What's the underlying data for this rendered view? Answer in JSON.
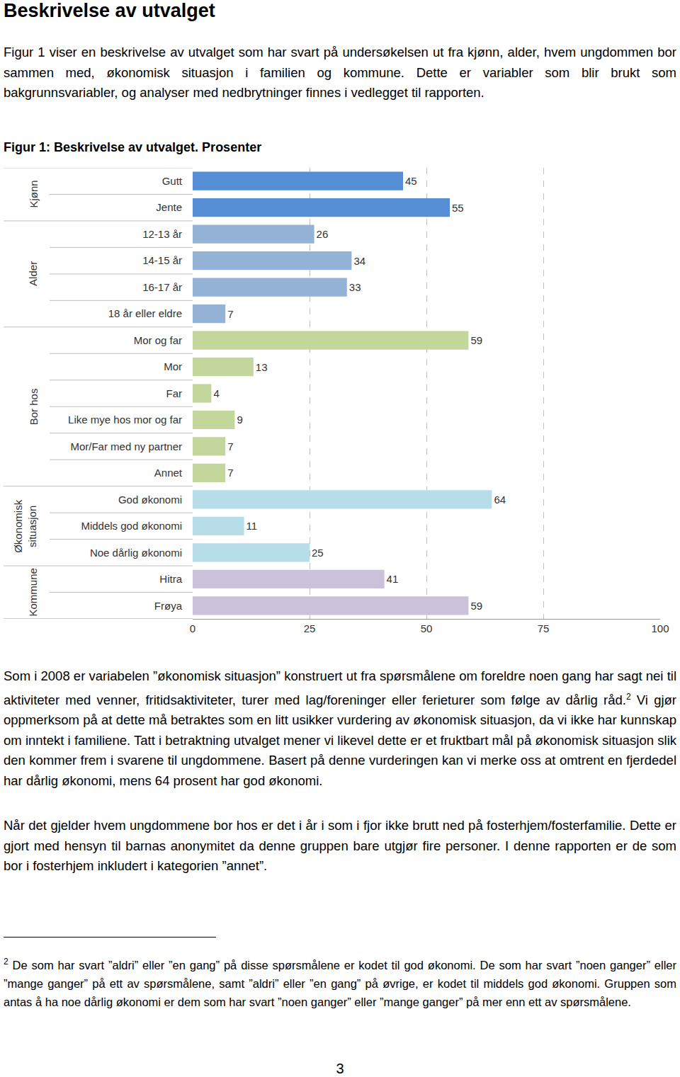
{
  "document": {
    "heading": "Beskrivelse av utvalget",
    "intro": "Figur 1 viser en beskrivelse av utvalget som har svart på undersøkelsen ut fra kjønn, alder, hvem ungdommen bor sammen med, økonomisk situasjon i familien og kommune. Dette er variabler som blir brukt som bakgrunnsvariabler, og analyser med nedbrytninger finnes i vedlegget til rapporten.",
    "paragraph2": {
      "before": "Som i 2008 er variabelen ”økonomisk situasjon” konstruert ut fra spørsmålene om foreldre noen gang har sagt nei til aktiviteter med venner, fritidsaktiviteter, turer med lag/foreninger eller ferieturer som følge av dårlig råd.",
      "footnote_ref": "2",
      "after": " Vi gjør oppmerksom på at dette må betraktes som en litt usikker vurdering av økonomisk situasjon, da vi ikke har kunnskap om inntekt i familiene. Tatt i betraktning utvalget mener vi likevel dette er et fruktbart mål på økonomisk situasjon slik den kommer frem i svarene til ungdommene. Basert på denne vurderingen kan vi merke oss at omtrent en fjerdedel har dårlig økonomi, mens 64 prosent har god økonomi."
    },
    "paragraph3": "Når det gjelder hvem ungdommene bor hos er det i år i som i fjor ikke brutt ned på fosterhjem/fosterfamilie. Dette er gjort med hensyn til barnas anonymitet da denne gruppen bare utgjør fire personer. I denne rapporten er de som bor i fosterhjem inkludert i kategorien ”annet”.",
    "footnote": {
      "number": "2",
      "text": " De som har svart ”aldri” eller ”en gang” på disse spørsmålene er kodet til god økonomi. De som har svart ”noen ganger” eller ”mange ganger” på ett av spørsmålene, samt ”aldri” eller ”en gang” på øvrige, er kodet til middels god økonomi. Gruppen som antas å ha noe dårlig økonomi er dem som har svart ”noen ganger” eller ”mange ganger” på mer enn ett av spørsmålene."
    },
    "page_number": "3"
  },
  "chart_data": {
    "type": "bar",
    "orientation": "horizontal",
    "title": "Figur 1: Beskrivelse av utvalget. Prosenter",
    "groups": [
      {
        "label": [
          "Kjønn"
        ],
        "color": "#558ed5",
        "categories": [
          "Gutt",
          "Jente"
        ],
        "values": [
          45,
          55
        ]
      },
      {
        "label": [
          "Alder"
        ],
        "color": "#95b3d7",
        "categories": [
          "12-13 år",
          "14-15 år",
          "16-17 år",
          "18 år eller eldre"
        ],
        "values": [
          26,
          34,
          33,
          7
        ]
      },
      {
        "label": [
          "Bor hos"
        ],
        "color": "#c3d69b",
        "categories": [
          "Mor og far",
          "Mor",
          "Far",
          "Like mye hos mor og far",
          "Mor/Far med ny partner",
          "Annet"
        ],
        "values": [
          59,
          13,
          4,
          9,
          7,
          7
        ]
      },
      {
        "label": [
          "Økonomisk",
          "situasjon"
        ],
        "color": "#b7dde8",
        "categories": [
          "God økonomi",
          "Middels god økonomi",
          "Noe dårlig økonomi"
        ],
        "values": [
          64,
          11,
          25
        ]
      },
      {
        "label": [
          "Kommune"
        ],
        "color": "#ccc1da",
        "categories": [
          "Hitra",
          "Frøya"
        ],
        "values": [
          41,
          59
        ]
      }
    ],
    "xlim": [
      0,
      100
    ],
    "xticks": [
      0,
      25,
      50,
      75,
      100
    ],
    "grid": true,
    "data_labels": true
  }
}
